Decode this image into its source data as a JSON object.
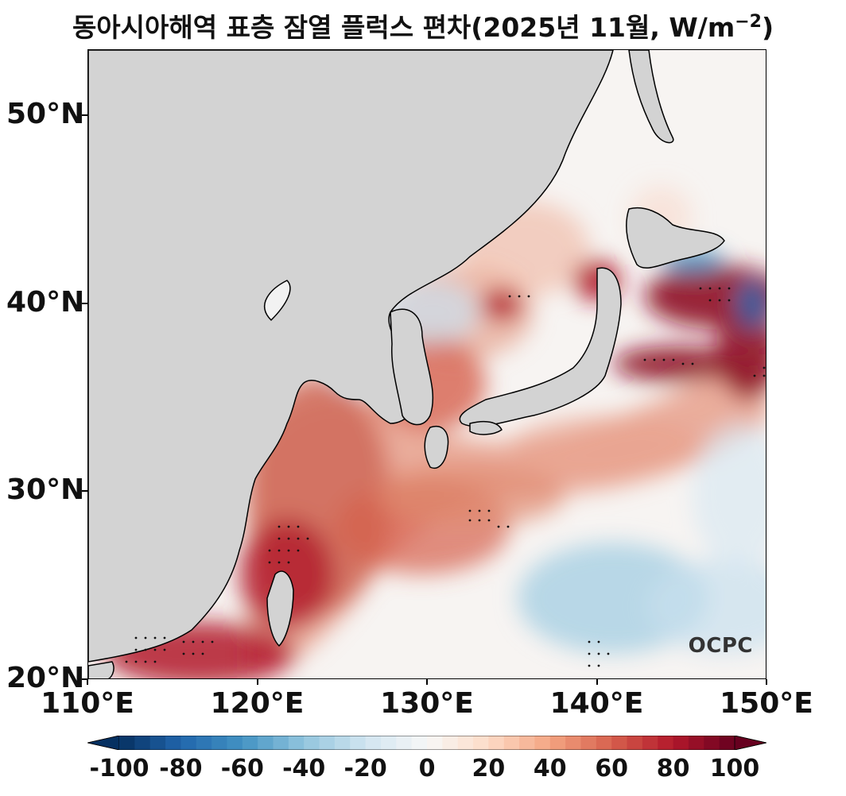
{
  "title": "동아시아해역 표층 잠열 플럭스 편차(2025년 11월, W/m",
  "title_sup": "−2",
  "title_close": ")",
  "logo_text": "OCPC",
  "map": {
    "lon_range": [
      110,
      150
    ],
    "lat_range": [
      20,
      53.5
    ],
    "land_color": "#d3d3d3",
    "coast_color": "#000000",
    "lat_ticks": [
      {
        "value": 20,
        "label": "20°N"
      },
      {
        "value": 30,
        "label": "30°N"
      },
      {
        "value": 40,
        "label": "40°N"
      },
      {
        "value": 50,
        "label": "50°N"
      }
    ],
    "lon_ticks": [
      {
        "value": 110,
        "label": "110°E"
      },
      {
        "value": 120,
        "label": "120°E"
      },
      {
        "value": 130,
        "label": "130°E"
      },
      {
        "value": 140,
        "label": "140°E"
      },
      {
        "value": 150,
        "label": "150°E"
      }
    ]
  },
  "colorbar": {
    "min": -100,
    "max": 100,
    "ticks": [
      "-100",
      "-80",
      "-60",
      "-40",
      "-20",
      "0",
      "20",
      "40",
      "60",
      "80",
      "100"
    ],
    "colors": [
      "#053061",
      "#2166ac",
      "#4393c3",
      "#92c5de",
      "#d1e5f0",
      "#f7f7f7",
      "#fddbc7",
      "#f4a582",
      "#d6604d",
      "#b2182b",
      "#67001f"
    ]
  }
}
